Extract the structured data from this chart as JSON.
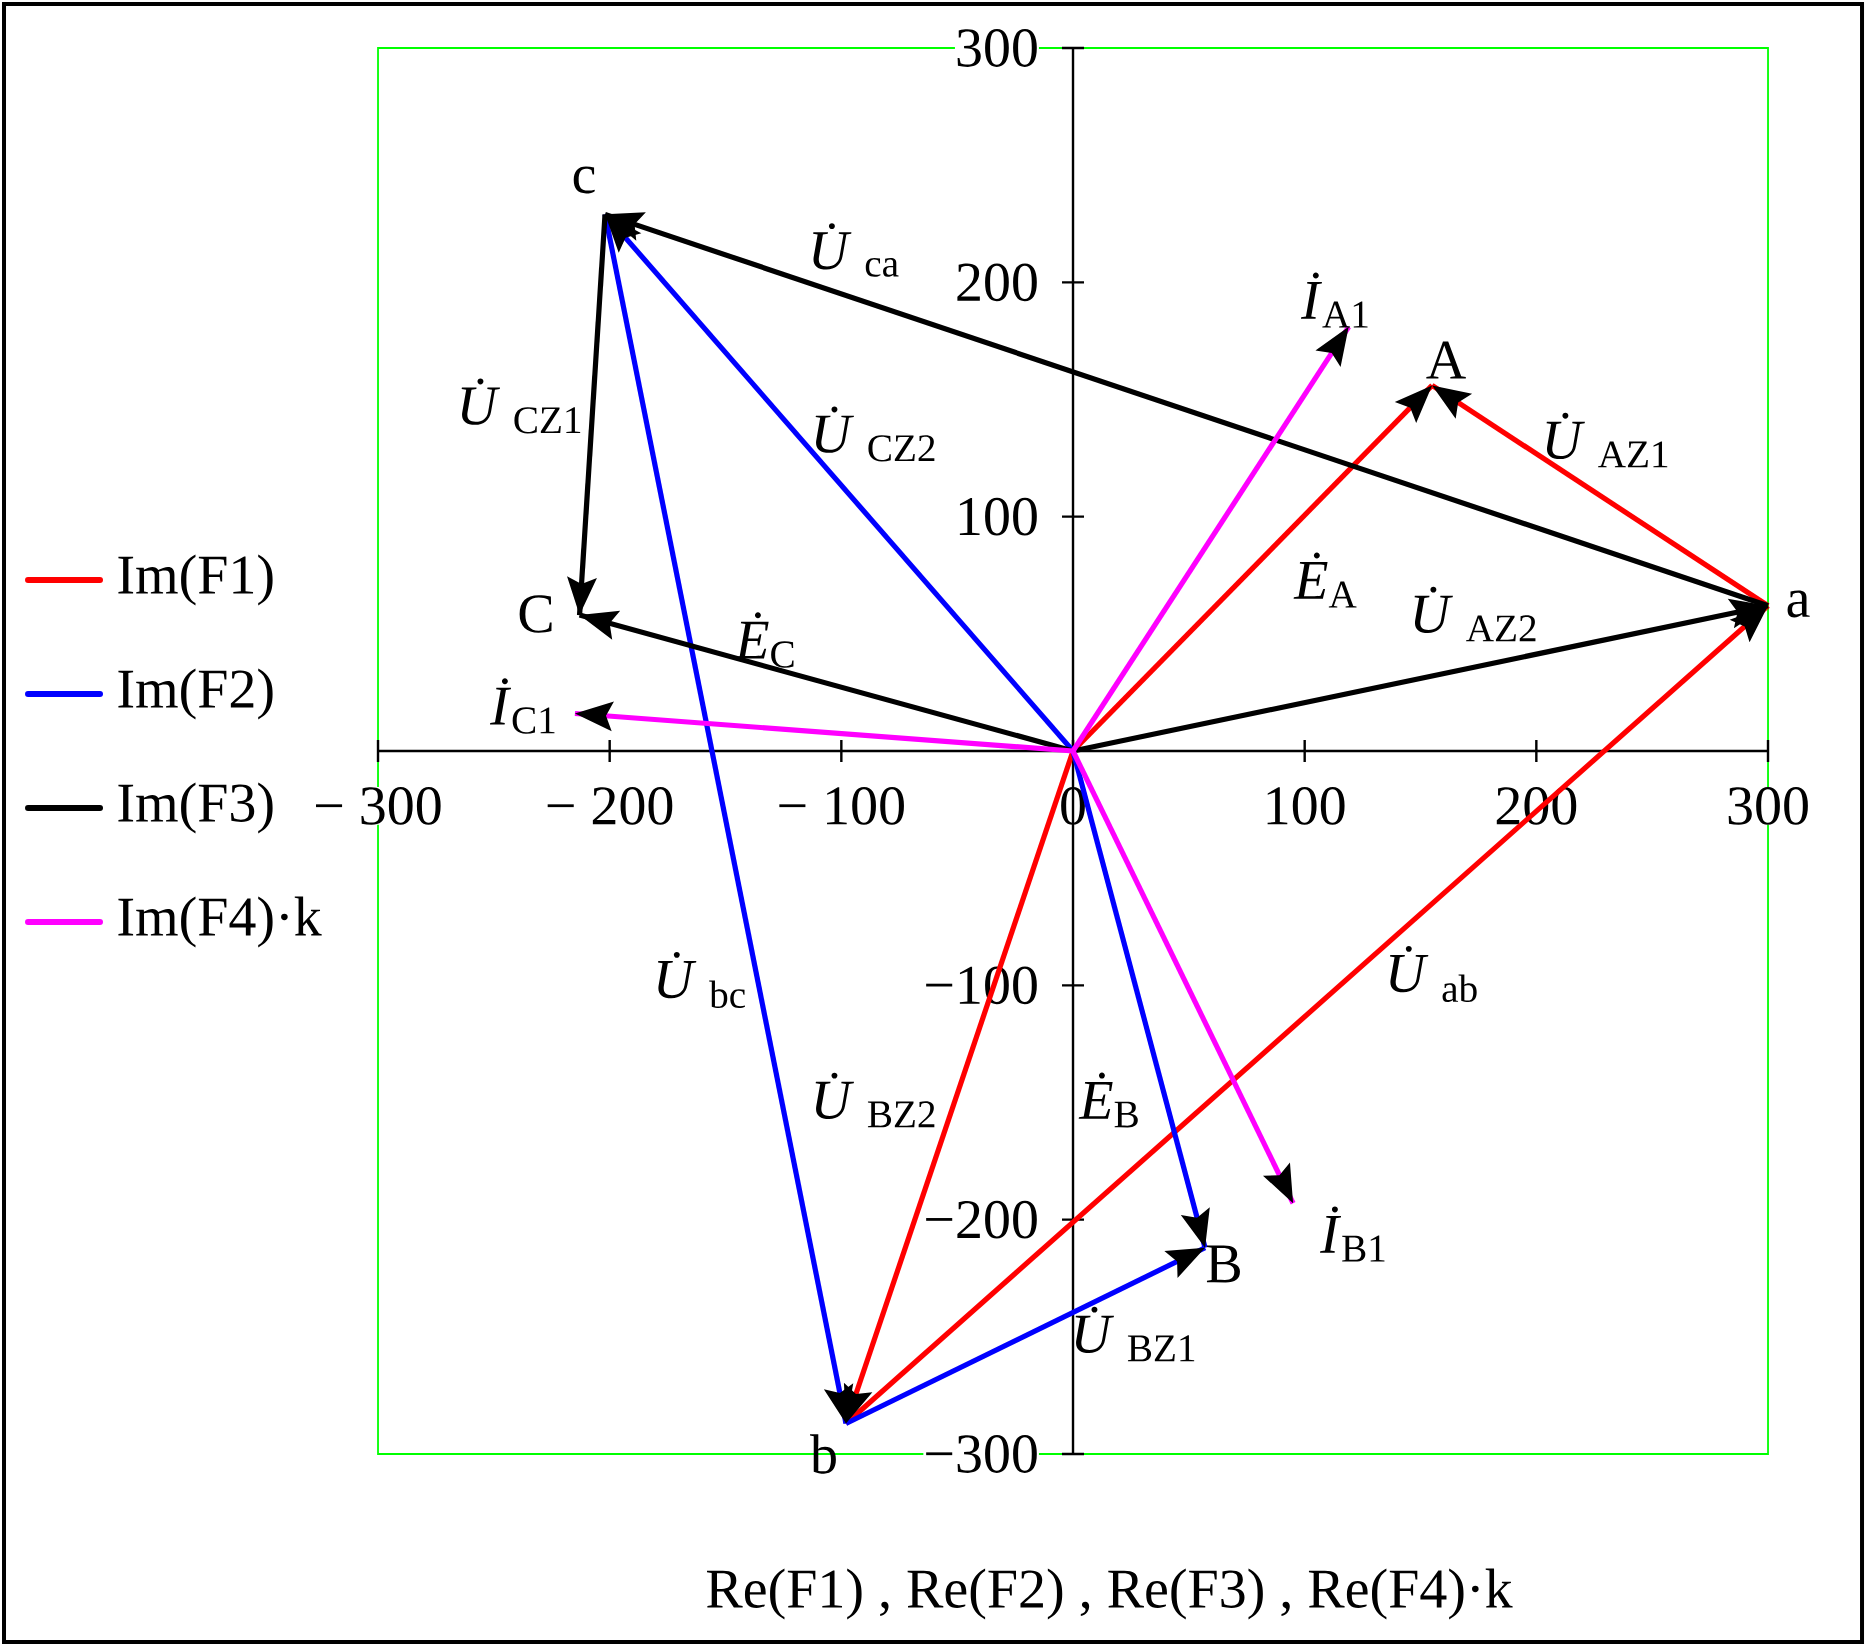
{
  "chart_data": {
    "type": "line",
    "xlabel": "Re(F1) , Re(F2) , Re(F3) , Re(F4)·k",
    "xlim": [
      -300,
      300
    ],
    "ylim": [
      -300,
      300
    ],
    "xticks": [
      {
        "value": -300,
        "label": "− 300"
      },
      {
        "value": -200,
        "label": "− 200"
      },
      {
        "value": -100,
        "label": "− 100"
      },
      0,
      100,
      200,
      300
    ],
    "yticks": [
      {
        "value": -300,
        "label": "−300"
      },
      {
        "value": -200,
        "label": "−200"
      },
      {
        "value": -100,
        "label": "−100"
      },
      100,
      200,
      300
    ],
    "legend": "left",
    "series": [
      {
        "name": "Im(F1)",
        "color": "#ff0000",
        "x": [
          0,
          155,
          null,
          300,
          155,
          null,
          0,
          -98,
          null,
          -98,
          300
        ],
        "values": [
          0,
          156,
          null,
          62,
          156,
          null,
          0,
          -287,
          null,
          -287,
          62
        ]
      },
      {
        "name": "Im(F2)",
        "color": "#0000ff",
        "x": [
          0,
          57,
          null,
          -98,
          57,
          null,
          -202,
          -98,
          null,
          0,
          -202
        ],
        "values": [
          0,
          -212,
          null,
          -287,
          -212,
          null,
          229,
          -287,
          null,
          0,
          229
        ]
      },
      {
        "name": "Im(F3)",
        "color": "#000000",
        "x": [
          0,
          300,
          null,
          300,
          -202,
          null,
          -202,
          -213,
          null,
          0,
          -213
        ],
        "values": [
          0,
          62,
          null,
          62,
          229,
          null,
          229,
          58,
          null,
          0,
          58
        ]
      },
      {
        "name": "Im(F4)·k",
        "color": "#ff00ff",
        "x": [
          0,
          119,
          null,
          0,
          95,
          null,
          0,
          -215
        ],
        "values": [
          0,
          181,
          null,
          0,
          -193,
          null,
          0,
          16
        ]
      }
    ],
    "annotations": [
      "c",
      "*U̇*$_{ca}$",
      "*U̇*$_{CZ1}$",
      "*U̇*$_{CZ2}$",
      "C",
      "*Ė*$_{C}$",
      "*İ*$_{C1}$",
      "*İ*$_{A1}$",
      "A",
      "*U̇*$_{AZ1}$",
      "*Ė*$_{A}$",
      "*U̇*$_{AZ2}$",
      "a",
      "*U̇*$_{bc}$",
      "*U̇*$_{ab}$",
      "*Ė*$_{B}$",
      "*U̇*$_{BZ2}$",
      "b",
      "B",
      "*İ*$_{B1}$",
      "*U̇*$_{BZ1}$"
    ]
  }
}
